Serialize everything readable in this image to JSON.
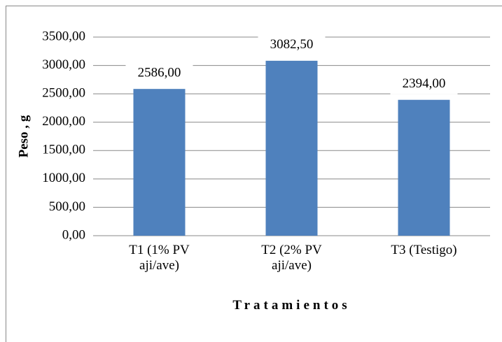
{
  "chart_data": {
    "type": "bar",
    "categories": [
      "T1 (1% PV aji/ave)",
      "T2 (2% PV aji/ave)",
      "T3 (Testigo)"
    ],
    "values": [
      2586,
      3082.5,
      2394
    ],
    "value_labels": [
      "2586,00",
      "3082,50",
      "2394,00"
    ],
    "color": "#4f81bd",
    "ylabel": "Peso , g",
    "xlabel": "Tratamientos",
    "ylim": [
      0,
      3500
    ],
    "yticks": [
      {
        "value": 0,
        "label": "0,00"
      },
      {
        "value": 500,
        "label": "500,00"
      },
      {
        "value": 1000,
        "label": "1000,00"
      },
      {
        "value": 1500,
        "label": "1500,00"
      },
      {
        "value": 2000,
        "label": "2000,00"
      },
      {
        "value": 2500,
        "label": "2500,00"
      },
      {
        "value": 3000,
        "label": "3000,00"
      },
      {
        "value": 3500,
        "label": "3500,00"
      }
    ],
    "grid": true
  }
}
